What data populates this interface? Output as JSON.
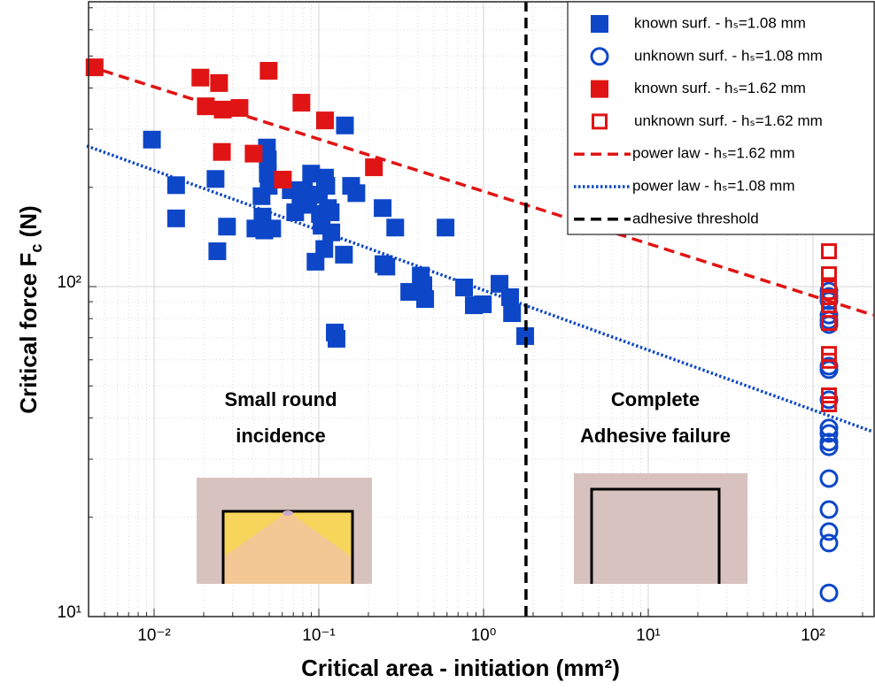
{
  "chart_data": {
    "type": "scatter",
    "xlabel": "Critical area - initiation (mm²)",
    "ylabel": [
      "Critical force F",
      "c",
      " (N)"
    ],
    "xscale": "log",
    "yscale": "log",
    "grid": true,
    "minor_grid": true,
    "legend": "upper right",
    "xlim": [
      0.004,
      235
    ],
    "ylim": [
      10,
      730
    ],
    "xticks": [
      {
        "value": 0.01,
        "label": "10⁻²"
      },
      {
        "value": 0.1,
        "label": "10⁻¹"
      },
      {
        "value": 1,
        "label": "10⁰"
      },
      {
        "value": 10,
        "label": "10¹"
      },
      {
        "value": 100,
        "label": "10²"
      }
    ],
    "yticks": [
      {
        "value": 10,
        "label": "10¹"
      },
      {
        "value": 100,
        "label": "10²"
      }
    ],
    "annotations": [
      "Small round",
      "incidence",
      "Complete",
      "Adhesive failure"
    ],
    "series": [
      {
        "name": "known surf. - hₛ=1.08 mm",
        "color": "#0d47c8",
        "style": "square-filled",
        "x": [
          0.0097,
          0.0136,
          0.0136,
          0.0236,
          0.0242,
          0.0277,
          0.0412,
          0.0449,
          0.0455,
          0.0467,
          0.0484,
          0.049,
          0.049,
          0.0496,
          0.0521,
          0.0676,
          0.0719,
          0.0774,
          0.0813,
          0.0855,
          0.0865,
          0.0898,
          0.0955,
          0.1,
          0.1016,
          0.104,
          0.108,
          0.109,
          0.111,
          0.1136,
          0.118,
          0.119,
          0.125,
          0.128,
          0.142,
          0.144,
          0.157,
          0.169,
          0.244,
          0.247,
          0.257,
          0.291,
          0.354,
          0.416,
          0.431,
          0.442,
          0.588,
          0.762,
          0.873,
          0.99,
          1.25,
          1.45,
          1.49,
          1.79
        ],
        "values": [
          279,
          203,
          161,
          212,
          128,
          152,
          150,
          188,
          163,
          148,
          264,
          243,
          220,
          202,
          150,
          196,
          168,
          181,
          196,
          183,
          177,
          220,
          119,
          190,
          166,
          153,
          130,
          214,
          202,
          173,
          168,
          146,
          72.6,
          69.5,
          125,
          308,
          202,
          192,
          173,
          117,
          115,
          151,
          96.4,
          108,
          101,
          91.7,
          151,
          99.4,
          87.8,
          88.4,
          102,
          92.9,
          83.1,
          70.8
        ]
      },
      {
        "name": "unknown surf. - hₛ=1.08 mm",
        "color": "#0d47c8",
        "style": "circle-open",
        "x": [
          125,
          125,
          125,
          125,
          125,
          125,
          125,
          125,
          125,
          125,
          125,
          125,
          125,
          125,
          125,
          125,
          125,
          125
        ],
        "values": [
          97,
          93.4,
          90.6,
          82,
          79.1,
          76.7,
          57.4,
          56,
          45.4,
          37.3,
          35.9,
          33.8,
          32.7,
          26.2,
          21.1,
          18.1,
          16.7,
          11.8
        ]
      },
      {
        "name": "known surf. - hₛ=1.62 mm",
        "color": "#e01414",
        "style": "square-filled",
        "x": [
          0.00435,
          0.0191,
          0.0206,
          0.0248,
          0.0258,
          0.0261,
          0.033,
          0.0402,
          0.0496,
          0.0605,
          0.0784,
          0.109,
          0.216
        ],
        "values": [
          462,
          430,
          352,
          414,
          256,
          344,
          348,
          253,
          451,
          211,
          361,
          319,
          230
        ]
      },
      {
        "name": "unknown surf. - hₛ=1.62 mm",
        "color": "#e01414",
        "style": "square-open",
        "x": [
          125,
          125,
          125,
          125,
          125,
          125,
          125,
          125,
          125,
          125
        ],
        "values": [
          128,
          109,
          101,
          92.9,
          87.8,
          77.6,
          62.5,
          59.6,
          46.8,
          44
        ]
      },
      {
        "name": "power law - hₛ=1.62 mm",
        "color": "#e01414",
        "style": "dashed",
        "x": [
          0.0039,
          232
        ],
        "values": [
          468,
          82
        ]
      },
      {
        "name": "power law - hₛ=1.08 mm",
        "color": "#0d47c8",
        "style": "dotted",
        "x": [
          0.0039,
          232
        ],
        "values": [
          267,
          36.3
        ]
      },
      {
        "name": "adhesive threshold",
        "color": "#000000",
        "style": "dashed",
        "x": [
          1.81,
          1.81
        ],
        "values": [
          10,
          730
        ]
      }
    ]
  }
}
